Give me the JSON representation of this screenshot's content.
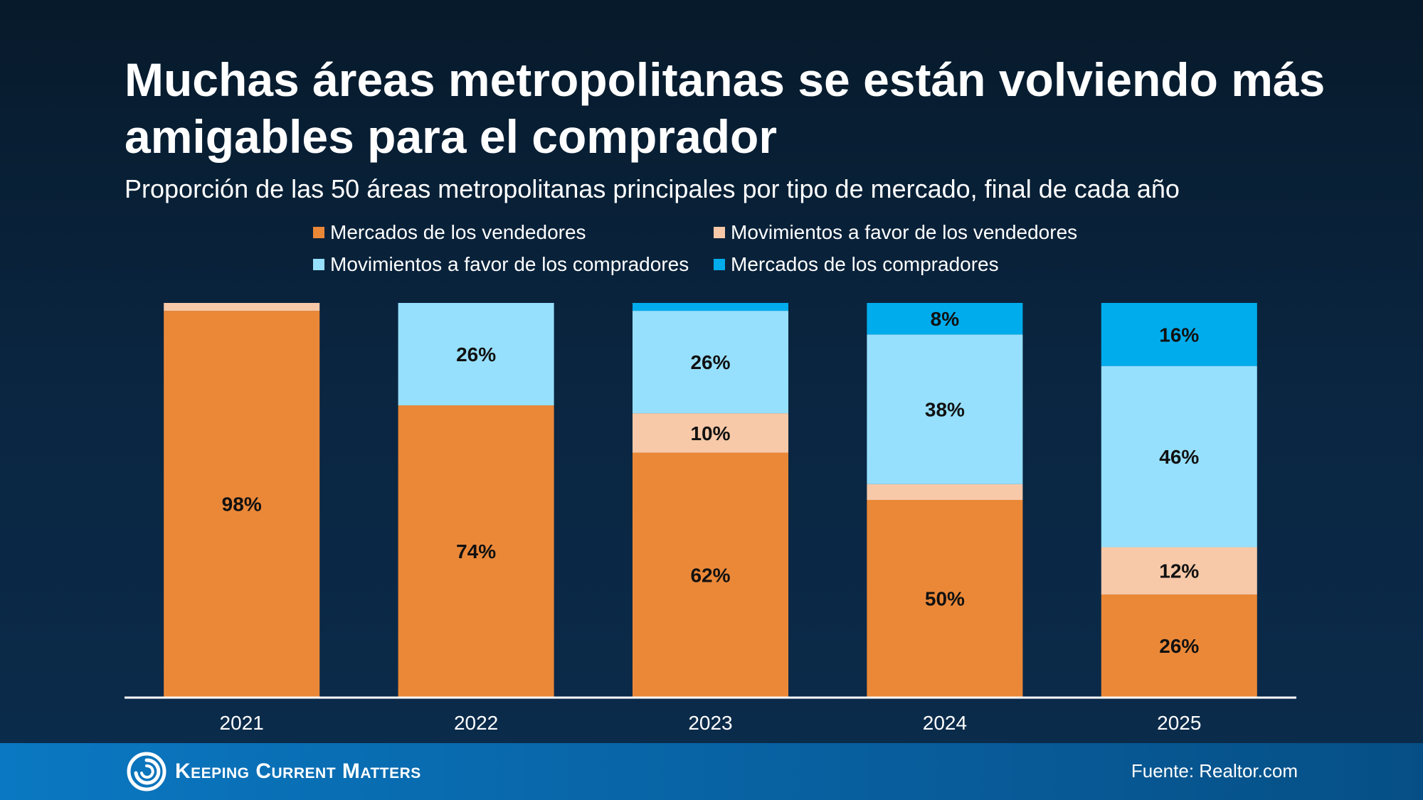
{
  "header": {
    "title": "Muchas áreas metropolitanas se están volviendo más amigables para el comprador",
    "subtitle": "Proporción de las 50 áreas metropolitanas principales por tipo de mercado, final de cada año"
  },
  "footer": {
    "brand": "Keeping Current Matters",
    "source": "Fuente: Realtor.com"
  },
  "colors": {
    "sellers_market": "#eb8838",
    "shift_sellers": "#f7c9a8",
    "shift_buyers": "#96e0fe",
    "buyers_market": "#00acec"
  },
  "chart_data": {
    "type": "bar",
    "stacked": true,
    "categories": [
      "2021",
      "2022",
      "2023",
      "2024",
      "2025"
    ],
    "ylim": [
      0,
      100
    ],
    "grid": false,
    "legend_position": "top",
    "series": [
      {
        "name": "Mercados de los vendedores",
        "color": "#eb8838",
        "values": [
          98,
          74,
          62,
          50,
          26
        ],
        "labels": [
          "98%",
          "74%",
          "62%",
          "50%",
          "26%"
        ]
      },
      {
        "name": "Movimientos a favor de los vendedores",
        "color": "#f7c9a8",
        "values": [
          2,
          0,
          10,
          4,
          12
        ],
        "labels": [
          "",
          "",
          "10%",
          "",
          "12%"
        ]
      },
      {
        "name": "Movimientos a favor de los compradores",
        "color": "#96e0fe",
        "values": [
          0,
          26,
          26,
          38,
          46
        ],
        "labels": [
          "",
          "26%",
          "26%",
          "38%",
          "46%"
        ]
      },
      {
        "name": "Mercados de los compradores",
        "color": "#00acec",
        "values": [
          0,
          0,
          2,
          8,
          16
        ],
        "labels": [
          "",
          "",
          "",
          "8%",
          "16%"
        ]
      }
    ]
  }
}
